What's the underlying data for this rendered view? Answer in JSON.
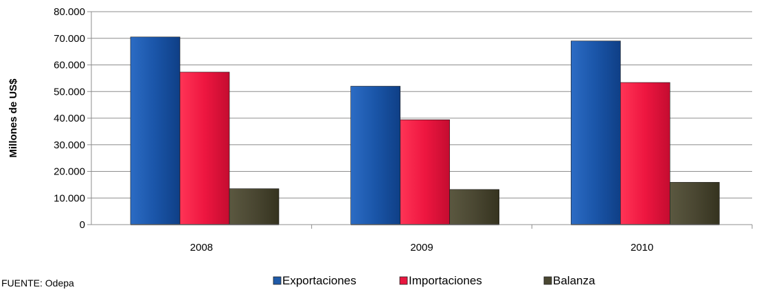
{
  "chart_data": {
    "type": "bar",
    "title": "",
    "xlabel": "",
    "ylabel": "Millones de US$",
    "categories": [
      "2008",
      "2009",
      "2010"
    ],
    "series": [
      {
        "name": "Exportaciones",
        "values": [
          70500,
          52000,
          69000
        ],
        "color": "#1f5aa8"
      },
      {
        "name": "Importaciones",
        "values": [
          57300,
          39400,
          53400
        ],
        "color": "#e8163f"
      },
      {
        "name": "Balanza",
        "values": [
          13500,
          13200,
          15900
        ],
        "color": "#4a4732"
      }
    ],
    "ylim": [
      0,
      80000
    ],
    "yticks": [
      0,
      10000,
      20000,
      30000,
      40000,
      50000,
      60000,
      70000,
      80000
    ],
    "ytick_labels": [
      "0",
      "10.000",
      "20.000",
      "30.000",
      "40.000",
      "50.000",
      "60.000",
      "70.000",
      "80.000"
    ],
    "grid": true,
    "legend_position": "bottom"
  },
  "source_note": "FUENTE: Odepa"
}
